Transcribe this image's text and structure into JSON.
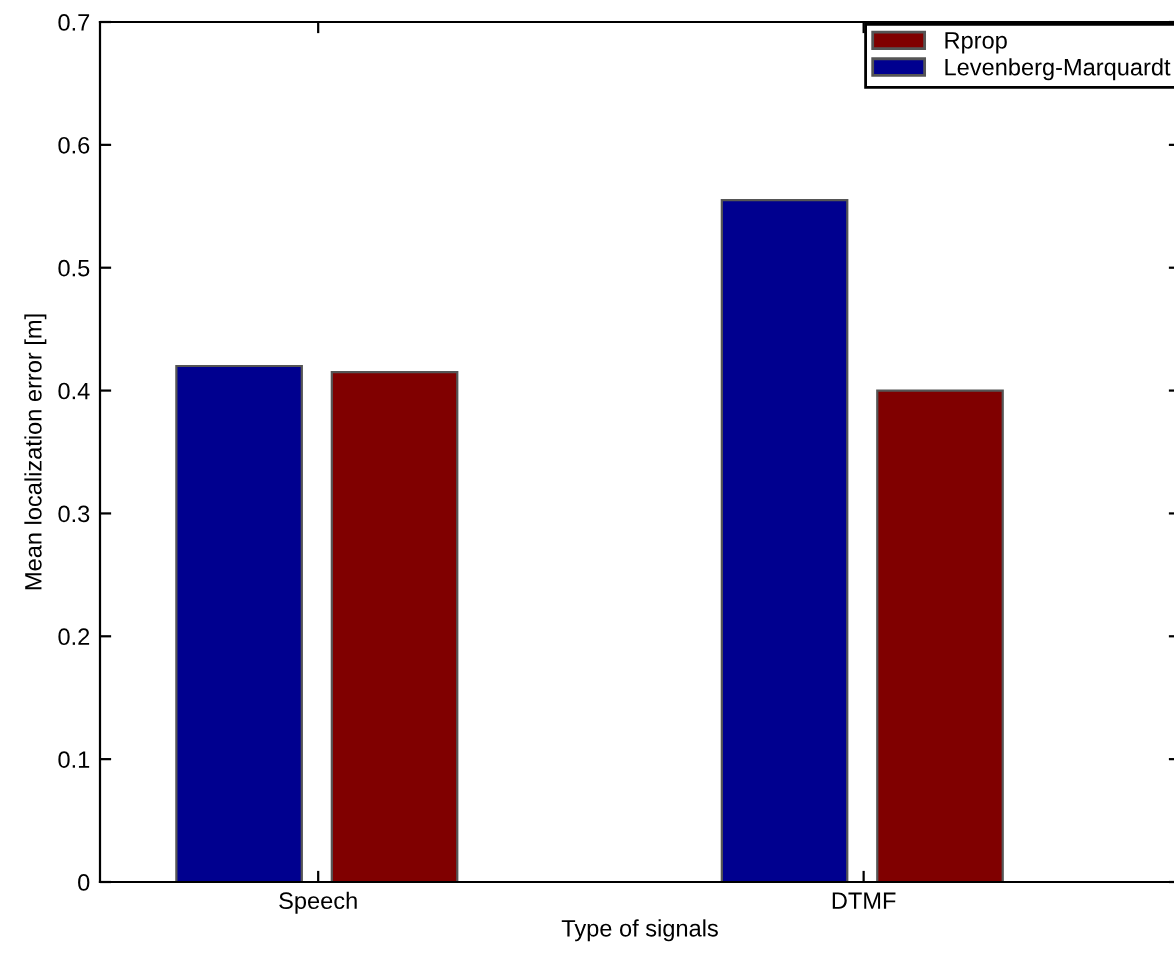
{
  "chart_data": {
    "type": "bar",
    "xlabel": "Type of signals",
    "ylabel": "Mean localization error [m]",
    "categories": [
      "Speech",
      "DTMF"
    ],
    "series": [
      {
        "name": "Levenberg-Marquardt",
        "color": "#00008f",
        "values": [
          0.42,
          0.555
        ]
      },
      {
        "name": "Rprop",
        "color": "#800000",
        "values": [
          0.415,
          0.4
        ]
      }
    ],
    "ylim": [
      0,
      0.7
    ],
    "yticks": [
      0,
      0.1,
      0.2,
      0.3,
      0.4,
      0.5,
      0.6,
      0.7
    ],
    "grid": false,
    "legend": "top right"
  }
}
